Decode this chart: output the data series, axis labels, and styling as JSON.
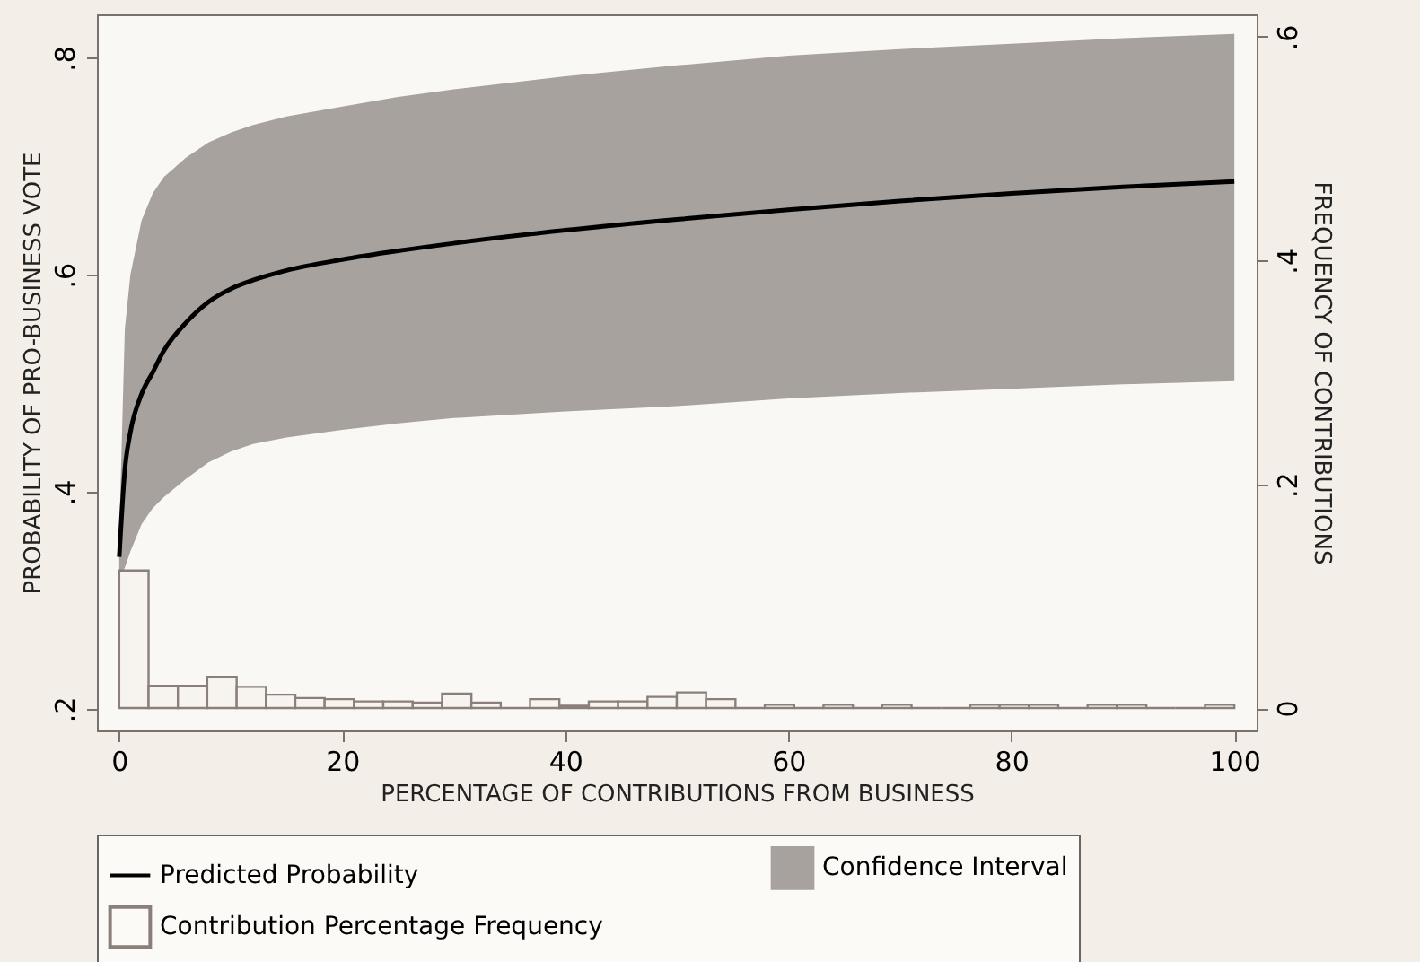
{
  "chart_data": {
    "type": "line",
    "xlabel": "PERCENTAGE OF CONTRIBUTIONS FROM BUSINESS",
    "ylabel": "PROBABILITY OF PRO-BUSINESS VOTE",
    "y2label": "FREQUENCY OF CONTRIBUTIONS",
    "xlim": [
      -2,
      102
    ],
    "xticks": [
      0,
      20,
      40,
      60,
      80,
      100
    ],
    "ylim": [
      0.18,
      0.84
    ],
    "yticks": [
      {
        "value": 0.2,
        "label": ".2"
      },
      {
        "value": 0.4,
        "label": ".4"
      },
      {
        "value": 0.6,
        "label": ".6"
      },
      {
        "value": 0.8,
        "label": ".8"
      }
    ],
    "y2lim": [
      -0.02,
      0.62
    ],
    "y2ticks": [
      0,
      {
        "value": 0.2,
        "label": ".2"
      },
      {
        "value": 0.4,
        "label": ".4"
      },
      {
        "value": 0.6,
        "label": ".6"
      }
    ],
    "grid": false,
    "legend": "bottom",
    "series": [
      {
        "name": "Predicted Probability",
        "color": "#000000",
        "x": [
          0,
          0.5,
          1,
          2,
          3,
          4,
          6,
          8,
          10,
          12,
          15,
          20,
          25,
          30,
          40,
          50,
          60,
          70,
          80,
          90,
          100
        ],
        "values": [
          0.34,
          0.42,
          0.455,
          0.49,
          0.51,
          0.53,
          0.556,
          0.575,
          0.587,
          0.595,
          0.604,
          0.614,
          0.622,
          0.629,
          0.641,
          0.651,
          0.66,
          0.668,
          0.675,
          0.681,
          0.686
        ],
        "lower": [
          0.32,
          0.33,
          0.345,
          0.37,
          0.385,
          0.395,
          0.412,
          0.427,
          0.437,
          0.444,
          0.45,
          0.457,
          0.463,
          0.468,
          0.474,
          0.479,
          0.486,
          0.491,
          0.495,
          0.499,
          0.502
        ],
        "upper": [
          0.36,
          0.55,
          0.6,
          0.65,
          0.675,
          0.69,
          0.708,
          0.722,
          0.731,
          0.738,
          0.746,
          0.755,
          0.764,
          0.771,
          0.783,
          0.793,
          0.802,
          0.808,
          0.813,
          0.818,
          0.822
        ]
      },
      {
        "name": "Confidence Interval",
        "type": "area",
        "color": "#a8a29f"
      },
      {
        "name": "Contribution Percentage Frequency",
        "type": "histogram",
        "axis": "y2",
        "color": "#8a7f7a",
        "bins": [
          0,
          2.63,
          5.26,
          7.89,
          10.53,
          13.16,
          15.79,
          18.42,
          21.05,
          23.68,
          26.32,
          28.95,
          31.58,
          34.21,
          36.84,
          39.47,
          42.11,
          44.74,
          47.37,
          50,
          52.63,
          55.26,
          57.89,
          60.53,
          63.16,
          65.79,
          68.42,
          71.05,
          73.68,
          76.32,
          78.95,
          81.58,
          84.21,
          86.84,
          89.47,
          92.11,
          94.74,
          97.37,
          100
        ],
        "values": [
          0.123,
          0.02,
          0.02,
          0.028,
          0.019,
          0.012,
          0.009,
          0.008,
          0.006,
          0.006,
          0.005,
          0.013,
          0.005,
          0,
          0.008,
          0.002,
          0.006,
          0.006,
          0.01,
          0.014,
          0.008,
          0,
          0.003,
          0,
          0.003,
          0,
          0.003,
          0,
          0,
          0.003,
          0.003,
          0.003,
          0,
          0.003,
          0.003,
          0,
          0,
          0.003
        ]
      }
    ]
  }
}
